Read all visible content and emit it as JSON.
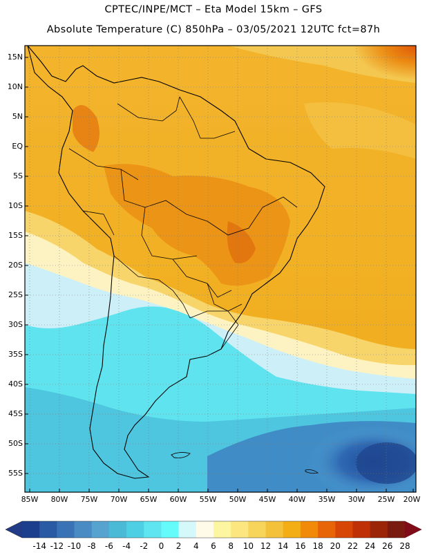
{
  "title": {
    "line1": "CPTEC/INPE/MCT –  Eta Model 15km – GFS",
    "line2": "Absolute Temperature (C) 850hPa – 03/05/2021 12UTC fct=87h"
  },
  "lat_labels": [
    "15N",
    "10N",
    "5N",
    "EQ",
    "5S",
    "10S",
    "15S",
    "20S",
    "25S",
    "30S",
    "35S",
    "40S",
    "45S",
    "50S",
    "55S"
  ],
  "lon_labels": [
    "85W",
    "80W",
    "75W",
    "70W",
    "65W",
    "60W",
    "55W",
    "50W",
    "45W",
    "40W",
    "35W",
    "30W",
    "25W",
    "20W"
  ],
  "colorbar": {
    "labels": [
      "-14",
      "-12",
      "-10",
      "-8",
      "-6",
      "-4",
      "-2",
      "0",
      "2",
      "4",
      "6",
      "8",
      "10",
      "12",
      "14",
      "16",
      "18",
      "20",
      "22",
      "24",
      "26",
      "28"
    ],
    "colors": [
      "#1b3f8c",
      "#2a5aa3",
      "#3a73b5",
      "#4a8bc4",
      "#56a3cf",
      "#4bbad7",
      "#4fcfe4",
      "#5fe5f0",
      "#66fbfb",
      "#d5f8fb",
      "#fffbe8",
      "#fdf6a0",
      "#fbe680",
      "#f7d45a",
      "#f4c13a",
      "#f3ad15",
      "#f08a08",
      "#e76407",
      "#d84606",
      "#bf3006",
      "#9a2507",
      "#7a1b10"
    ],
    "under_color": "#223b86",
    "over_color": "#7f0c16"
  }
}
